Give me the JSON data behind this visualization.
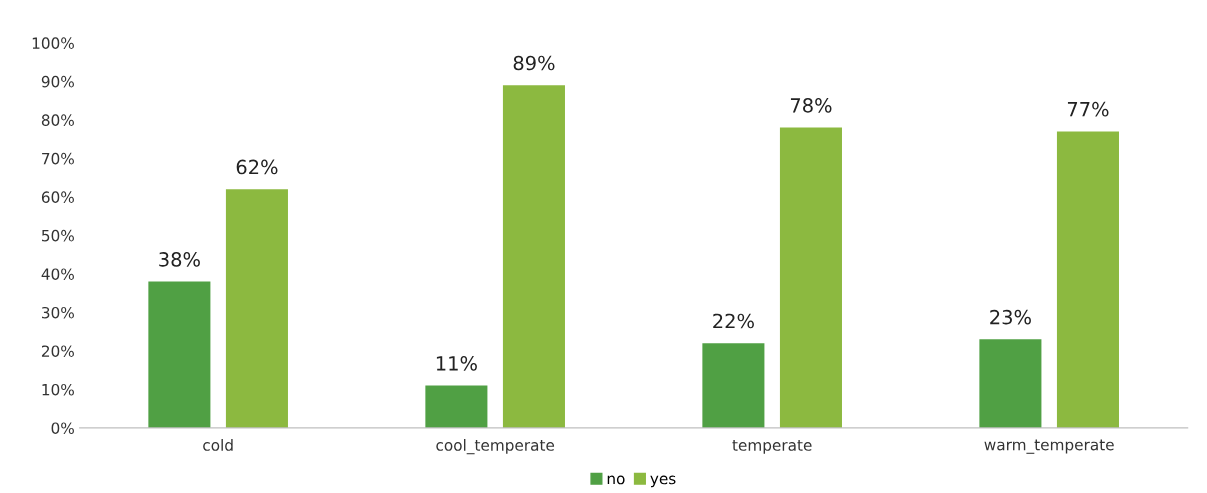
{
  "chart_data": {
    "type": "bar",
    "categories": [
      "cold",
      "cool_temperate",
      "temperate",
      "warm_temperate"
    ],
    "series": [
      {
        "name": "no",
        "color": "#50a044",
        "values": [
          38,
          11,
          22,
          23
        ],
        "value_labels": [
          "38%",
          "11%",
          "22%",
          "23%"
        ]
      },
      {
        "name": "yes",
        "color": "#8cb940",
        "values": [
          62,
          89,
          78,
          77
        ],
        "value_labels": [
          "62%",
          "89%",
          "78%",
          "77%"
        ]
      }
    ],
    "ylim": [
      0,
      100
    ],
    "yticks": [
      {
        "value": 0,
        "label": "0%"
      },
      {
        "value": 10,
        "label": "10%"
      },
      {
        "value": 20,
        "label": "20%"
      },
      {
        "value": 30,
        "label": "30%"
      },
      {
        "value": 40,
        "label": "40%"
      },
      {
        "value": 50,
        "label": "50%"
      },
      {
        "value": 60,
        "label": "60%"
      },
      {
        "value": 70,
        "label": "70%"
      },
      {
        "value": 80,
        "label": "80%"
      },
      {
        "value": 90,
        "label": "90%"
      },
      {
        "value": 100,
        "label": "100%"
      }
    ],
    "grid": false,
    "legend": "bottom"
  }
}
